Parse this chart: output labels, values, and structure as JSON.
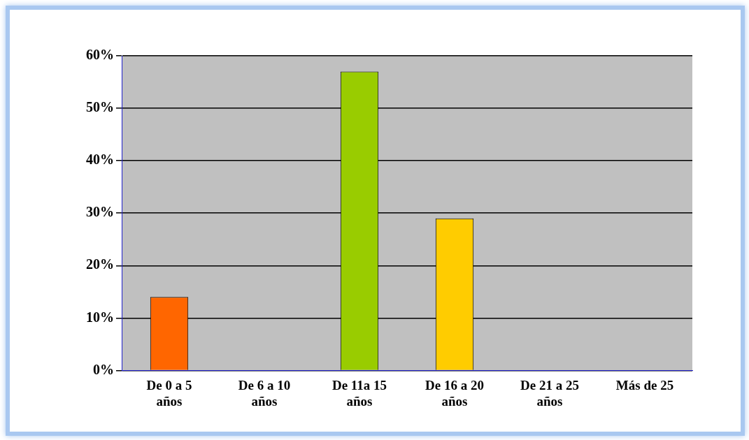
{
  "chart_data": {
    "type": "bar",
    "categories": [
      "De 0 a 5 años",
      "De 6 a 10 años",
      "De 11a 15 años",
      "De 16 a 20 años",
      "De 21 a 25 años",
      "Más de 25"
    ],
    "values": [
      14,
      0,
      57,
      29,
      0,
      0
    ],
    "colors": [
      "#ff6600",
      "#0000cc",
      "#99cc00",
      "#ffcc00",
      "#006666",
      "#cc6666"
    ],
    "ylim": [
      0,
      60
    ],
    "yticks": [
      {
        "value": 0,
        "label": "0%"
      },
      {
        "value": 10,
        "label": "10%"
      },
      {
        "value": 20,
        "label": "20%"
      },
      {
        "value": 30,
        "label": "30%"
      },
      {
        "value": 40,
        "label": "40%"
      },
      {
        "value": 50,
        "label": "50%"
      },
      {
        "value": 60,
        "label": "60%"
      }
    ],
    "grid": "y",
    "legend": false
  }
}
